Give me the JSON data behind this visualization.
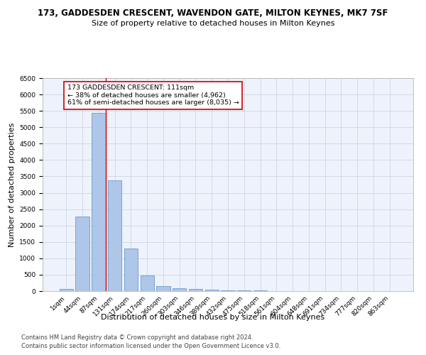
{
  "title_line1": "173, GADDESDEN CRESCENT, WAVENDON GATE, MILTON KEYNES, MK7 7SF",
  "title_line2": "Size of property relative to detached houses in Milton Keynes",
  "xlabel": "Distribution of detached houses by size in Milton Keynes",
  "ylabel": "Number of detached properties",
  "footer_line1": "Contains HM Land Registry data © Crown copyright and database right 2024.",
  "footer_line2": "Contains public sector information licensed under the Open Government Licence v3.0.",
  "bar_labels": [
    "1sqm",
    "44sqm",
    "87sqm",
    "131sqm",
    "174sqm",
    "217sqm",
    "260sqm",
    "303sqm",
    "346sqm",
    "389sqm",
    "432sqm",
    "475sqm",
    "518sqm",
    "561sqm",
    "604sqm",
    "648sqm",
    "691sqm",
    "734sqm",
    "777sqm",
    "820sqm",
    "863sqm"
  ],
  "bar_values": [
    70,
    2270,
    5430,
    3380,
    1310,
    475,
    160,
    90,
    55,
    40,
    30,
    20,
    15,
    10,
    8,
    5,
    4,
    3,
    2,
    2,
    1
  ],
  "bar_color": "#aec6e8",
  "bar_edge_color": "#5a8fc4",
  "highlight_bar_index": 2,
  "highlight_color": "#cc0000",
  "annotation_text": "173 GADDESDEN CRESCENT: 111sqm\n← 38% of detached houses are smaller (4,962)\n61% of semi-detached houses are larger (8,035) →",
  "annotation_box_color": "#ffffff",
  "annotation_box_edge": "#cc0000",
  "ylim": [
    0,
    6500
  ],
  "yticks": [
    0,
    500,
    1000,
    1500,
    2000,
    2500,
    3000,
    3500,
    4000,
    4500,
    5000,
    5500,
    6000,
    6500
  ],
  "background_color": "#eef2fb",
  "grid_color": "#c8cfe0",
  "title_fontsize": 8.5,
  "subtitle_fontsize": 8,
  "axis_label_fontsize": 8,
  "tick_fontsize": 6.5,
  "footer_fontsize": 6
}
